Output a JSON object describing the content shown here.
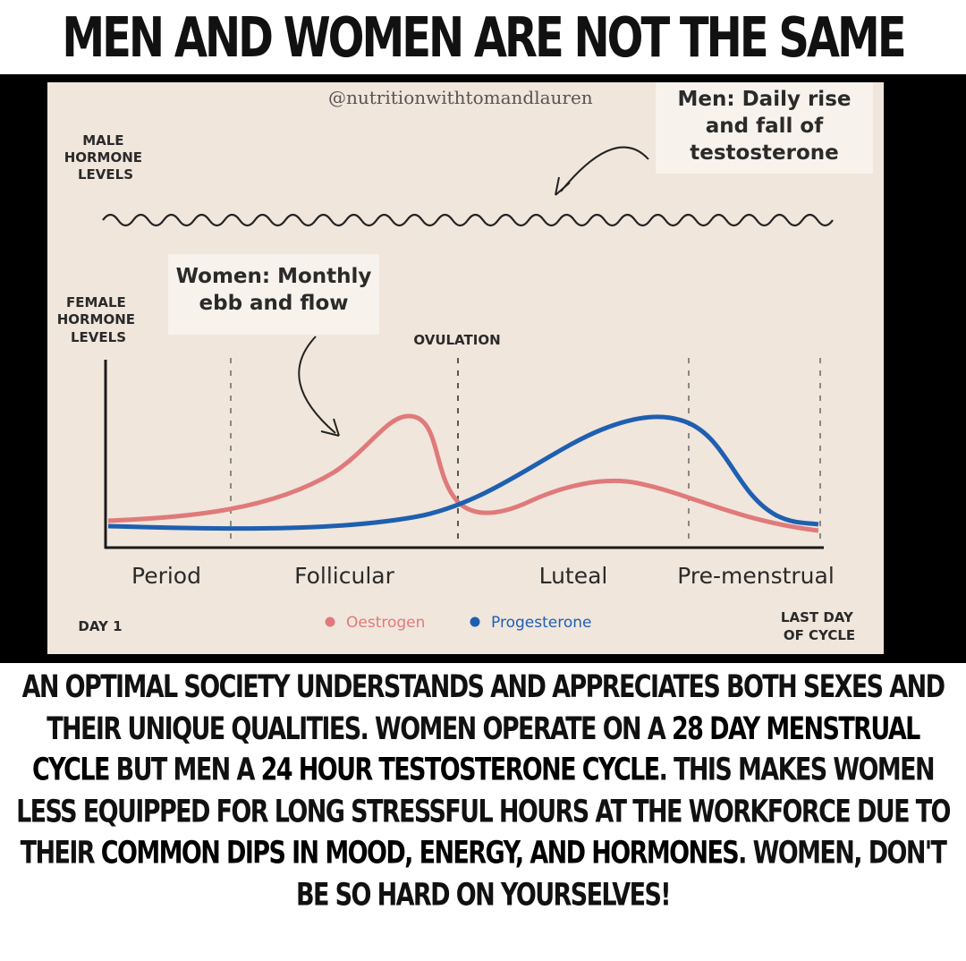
{
  "headline": "MEN AND WOMEN ARE NOT THE SAME",
  "figure": {
    "watermark": "@nutritionwithtomandlauren",
    "men_callout": [
      "Men: Daily rise",
      "and fall of",
      "testosterone"
    ],
    "women_callout": [
      "Women: Monthly",
      "ebb and flow"
    ],
    "male_axis_label": [
      "MALE",
      "HORMONE",
      "LEVELS"
    ],
    "female_axis_label": [
      "FEMALE",
      "HORMONE",
      "LEVELS"
    ],
    "ovulation_label": "OVULATION",
    "phases": [
      "Period",
      "Follicular",
      "Luteal",
      "Pre-menstrual"
    ],
    "day_start": "DAY 1",
    "day_end": [
      "LAST DAY",
      "OF CYCLE"
    ],
    "legend": [
      {
        "name": "Oestrogen",
        "color": "#e07a7a"
      },
      {
        "name": "Progesterone",
        "color": "#1f5fb0"
      }
    ],
    "colors": {
      "oestrogen": "#e07a7a",
      "progesterone": "#1f5fb0",
      "male_wave": "#222222",
      "background": "#f0e6dc"
    }
  },
  "caption": {
    "segments": [
      {
        "text": "AN OPTIMAL SOCIETY UNDERSTANDS AND APPRECIATES BOTH SEXES AND THEIR UNIQUE QUALITIES. WOMEN OPERATE ON A ",
        "emphasis": false
      },
      {
        "text": "28 DAY MENSTRUAL CYCLE",
        "emphasis": true
      },
      {
        "text": " BUT MEN A ",
        "emphasis": false
      },
      {
        "text": "24 HOUR TESTOSTERONE CYCLE",
        "emphasis": true
      },
      {
        "text": ". THIS MAKES WOMEN LESS EQUIPPED FOR LONG STRESSFUL HOURS AT THE WORKFORCE DUE TO THEIR ",
        "emphasis": false
      },
      {
        "text": "COMMON DIPS IN MOOD, ENERGY, AND HORMONES",
        "emphasis": true
      },
      {
        "text": ". WOMEN, DON'T BE SO HARD ON YOURSELVES!",
        "emphasis": false
      }
    ]
  }
}
